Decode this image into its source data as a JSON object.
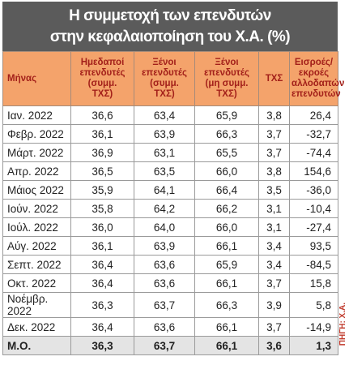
{
  "header": {
    "title": [
      "Η συμμετοχή των επενδυτών",
      "στην κεφαλαιοποίηση του Χ.Α. (%)"
    ]
  },
  "table": {
    "columns": [
      "Μήνας",
      "Ημεδαποί\nεπενδυτές\n(συμμ.\nΤΧΣ)",
      "Ξένοι\nεπενδυτές\n(συμμ.\nΤΧΣ)",
      "Ξένοι\nεπενδυτές\n(μη συμμ.\nΤΧΣ)",
      "ΤΧΣ",
      "Εισροές/\nεκροές\nαλλοδαπών\nεπενδυτών"
    ],
    "rows": [
      [
        "Ιαν. 2022",
        "36,6",
        "63,4",
        "65,9",
        "3,8",
        "26,4"
      ],
      [
        "Φεβρ. 2022",
        "36,1",
        "63,9",
        "66,3",
        "3,7",
        "-32,7"
      ],
      [
        "Μάρτ. 2022",
        "36,9",
        "63,1",
        "65,5",
        "3,7",
        "-74,4"
      ],
      [
        "Απρ. 2022",
        "36,5",
        "63,5",
        "66,0",
        "3,8",
        "154,6"
      ],
      [
        "Μάιος 2022",
        "35,9",
        "64,1",
        "66,4",
        "3,5",
        "-36,0"
      ],
      [
        "Ιούν. 2022",
        "35,8",
        "64,2",
        "66,2",
        "3,1",
        "-10,4"
      ],
      [
        "Ιούλ. 2022",
        "36,0",
        "64,0",
        "66,0",
        "3,1",
        "-27,4"
      ],
      [
        "Αύγ. 2022",
        "36,1",
        "63,9",
        "66,1",
        "3,4",
        "93,5"
      ],
      [
        "Σεπτ. 2022",
        "36,4",
        "63,6",
        "65,9",
        "3,4",
        "-84,5"
      ],
      [
        "Οκτ. 2022",
        "36,4",
        "63,6",
        "66,1",
        "3,7",
        "15,8"
      ],
      [
        "Νοέμβρ.\n2022",
        "36,3",
        "63,7",
        "66,3",
        "3,9",
        "5,8"
      ],
      [
        "Δεκ. 2022",
        "36,4",
        "63,6",
        "66,1",
        "3,7",
        "-14,9"
      ]
    ],
    "footer": [
      "Μ.Ο.",
      "36,3",
      "63,7",
      "66,1",
      "3,6",
      "1,3"
    ]
  },
  "source": "ΠΗΓΗ: Χ.Α."
}
